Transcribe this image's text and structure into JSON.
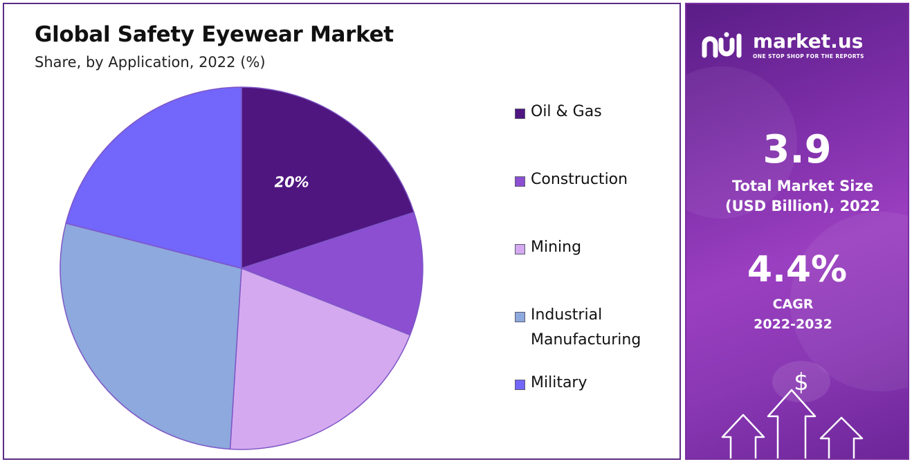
{
  "chart_data": {
    "type": "pie",
    "title": "Global Safety Eyewear Market",
    "subtitle": "Share, by Application, 2022 (%)",
    "categories": [
      "Oil & Gas",
      "Construction",
      "Mining",
      "Industrial Manufacturing",
      "Military"
    ],
    "values": [
      20,
      11,
      20,
      28,
      21
    ],
    "data_labels": [
      "20%",
      "",
      "",
      "",
      ""
    ],
    "colors": [
      "#4f1680",
      "#8c4fd2",
      "#d4a9ef",
      "#8da9dd",
      "#7266fb"
    ],
    "legend": {
      "placement": "right",
      "entries": [
        "Oil & Gas",
        "Construction",
        "Mining",
        "Industrial Manufacturing",
        "Military"
      ]
    }
  },
  "sidebar": {
    "brand": {
      "name": "market.us",
      "tagline": "ONE STOP SHOP FOR THE REPORTS"
    },
    "market_size": {
      "value": "3.9",
      "label_line1": "Total Market Size",
      "label_line2": "(USD Billion), 2022"
    },
    "cagr": {
      "value": "4.4%",
      "label_line1": "CAGR",
      "label_line2": "2022-2032"
    },
    "icons": [
      "dollar-icon",
      "growth-arrows-icon"
    ]
  }
}
